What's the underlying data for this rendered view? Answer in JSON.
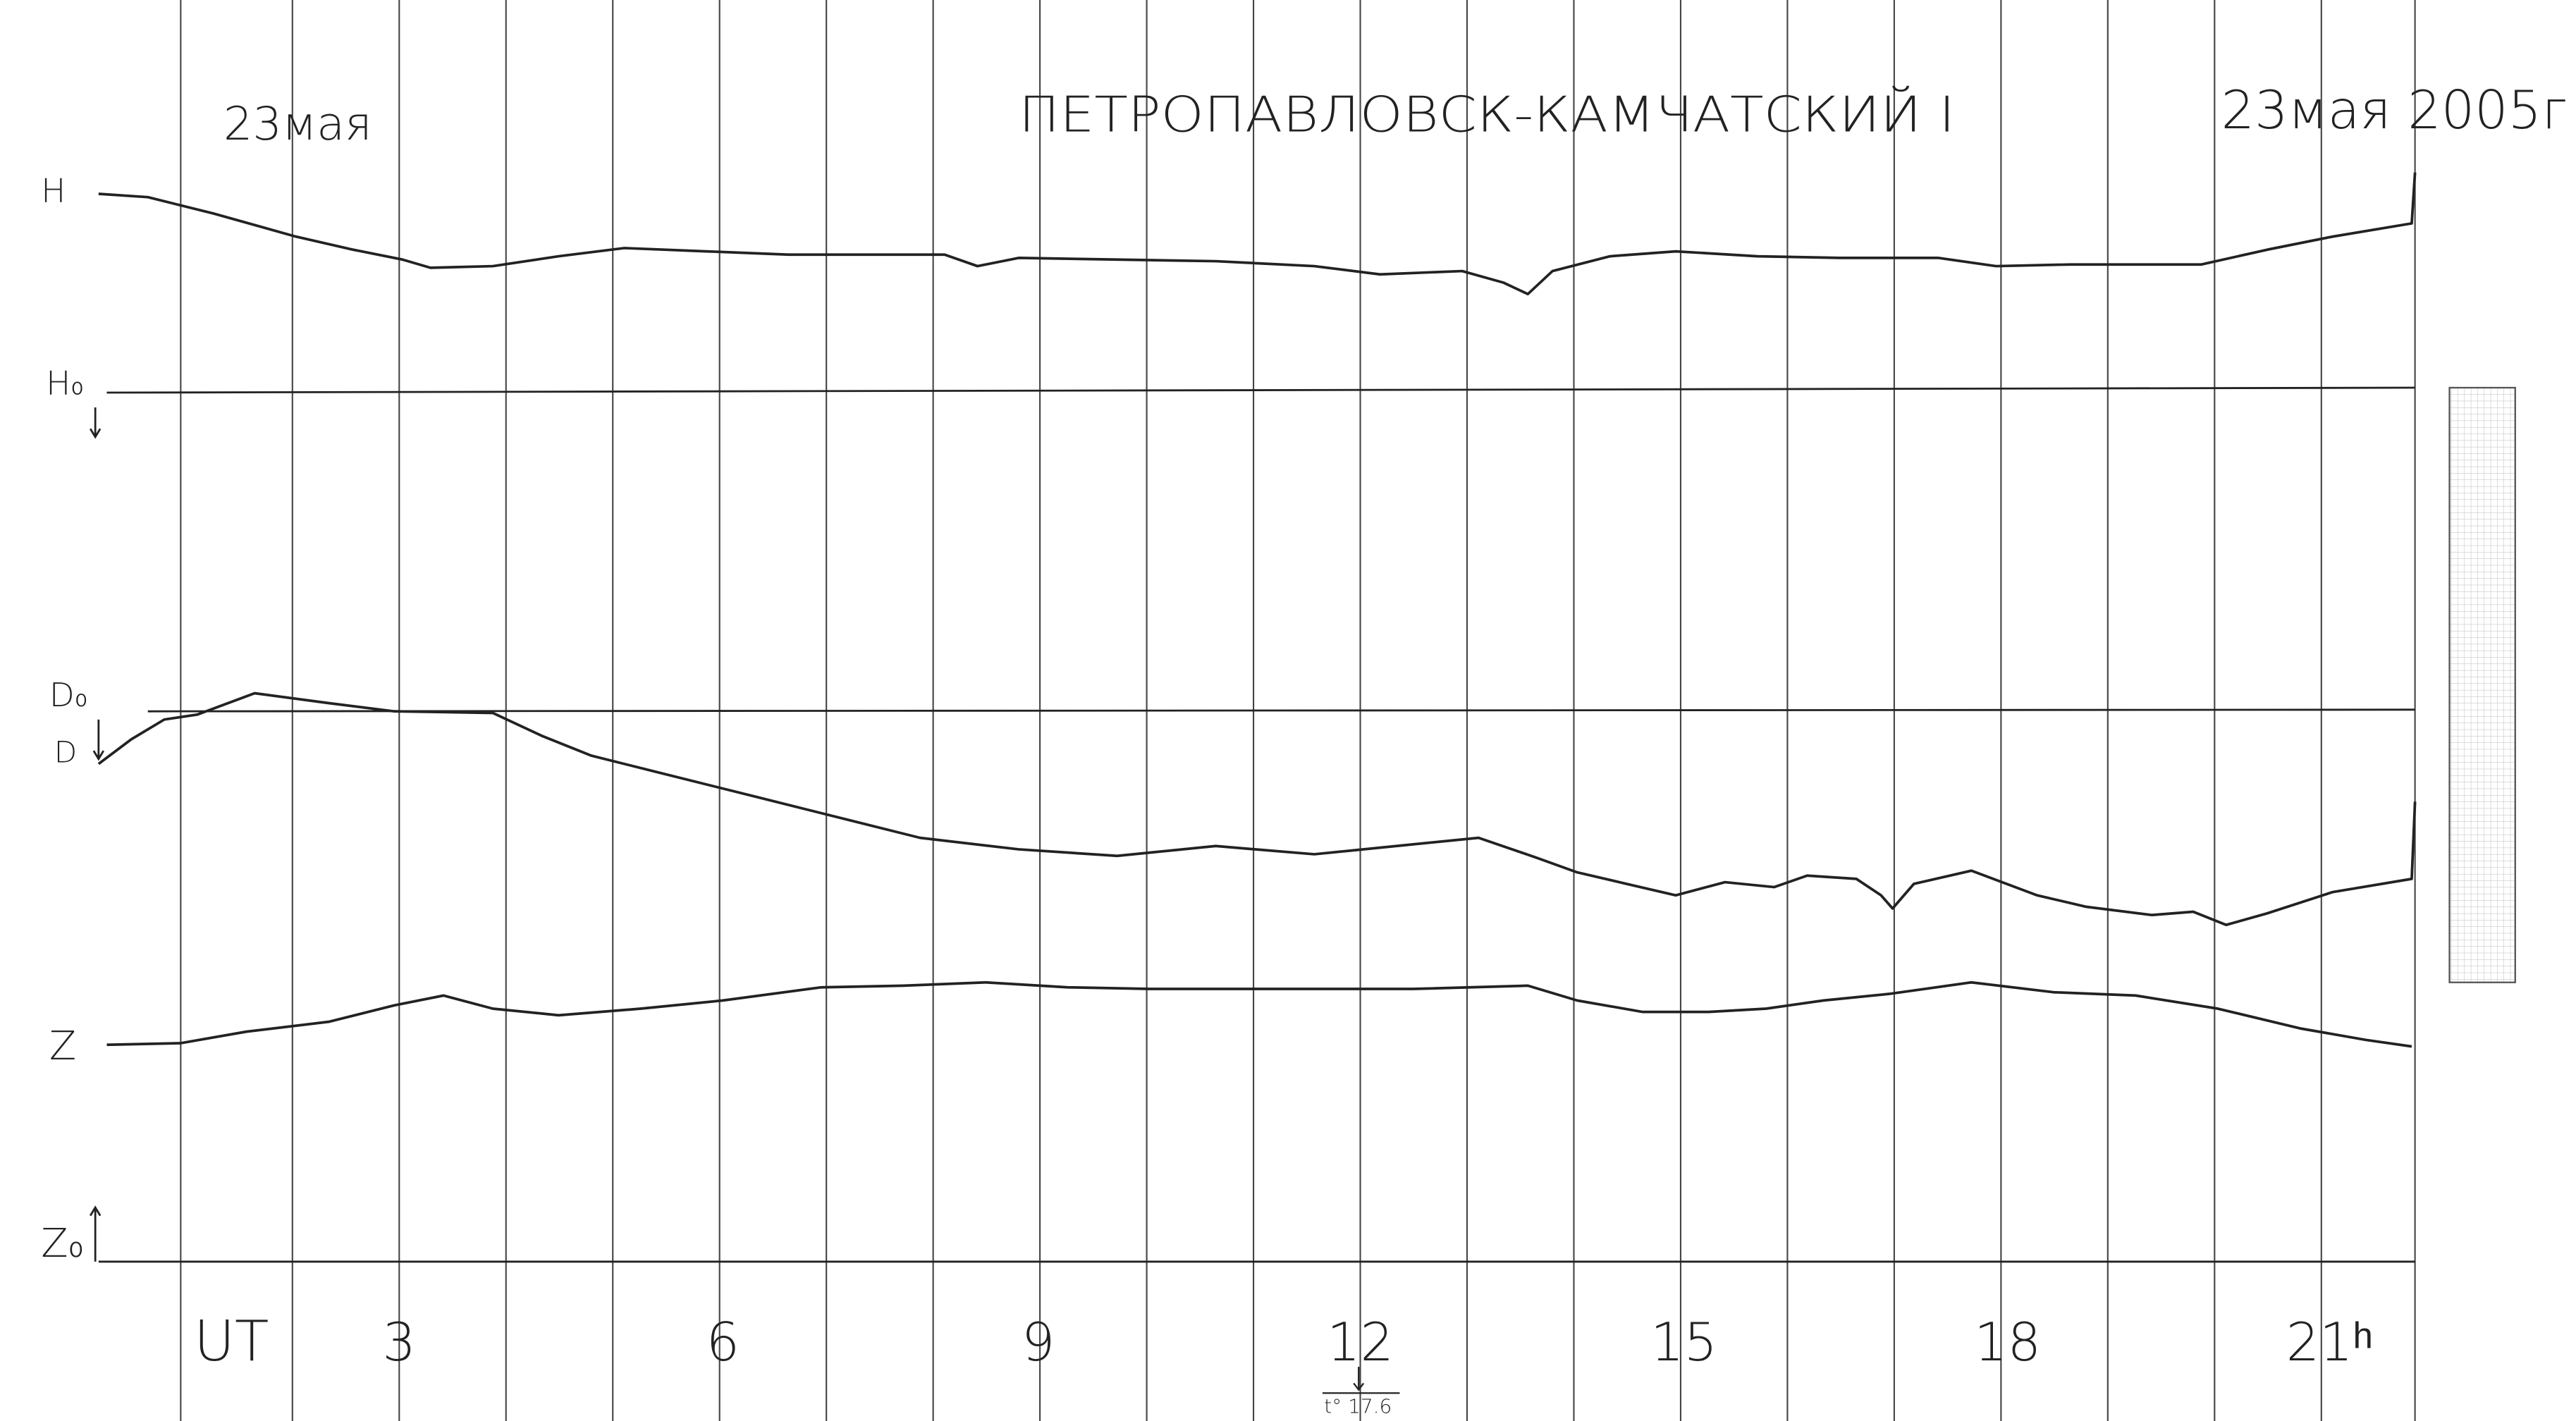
{
  "header": {
    "date_left": "23мая",
    "station": "ПЕТРОПАВЛОВСК-КАМЧАТСКИЙ I",
    "date_right": "23мая 2005г"
  },
  "labels": {
    "h": "H",
    "h0": "H₀",
    "d0": "D₀",
    "d": "D",
    "z": "Z",
    "z0": "Z₀"
  },
  "time_axis": {
    "label": "UT",
    "hours": [
      "3",
      "6",
      "9",
      "12",
      "15",
      "18",
      "21ʰ"
    ]
  },
  "temperature": "t° 17.6"
}
